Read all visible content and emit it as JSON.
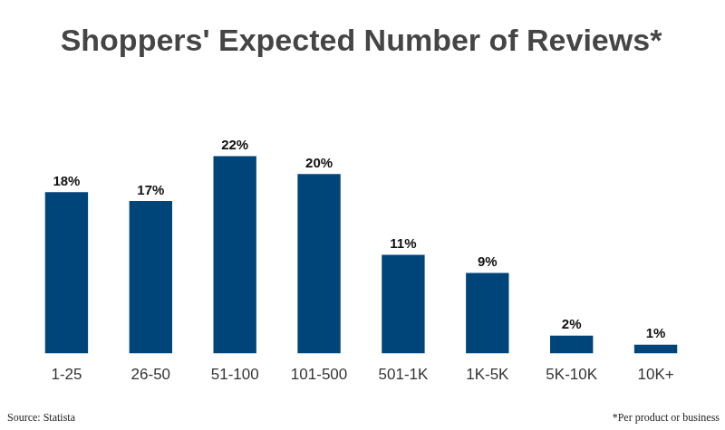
{
  "chart_data": {
    "type": "bar",
    "title": "Shoppers' Expected Number of Reviews*",
    "categories": [
      "1-25",
      "26-50",
      "51-100",
      "101-500",
      "501-1K",
      "1K-5K",
      "5K-10K",
      "10K+"
    ],
    "values": [
      18,
      17,
      22,
      20,
      11,
      9,
      2,
      1
    ],
    "value_labels": [
      "18%",
      "17%",
      "22%",
      "20%",
      "11%",
      "9%",
      "2%",
      "1%"
    ],
    "color": "#00457a",
    "data_labels": true,
    "grid": false,
    "tick_labels": "x",
    "source": "Source: Statista",
    "note": "*Per product or business"
  }
}
